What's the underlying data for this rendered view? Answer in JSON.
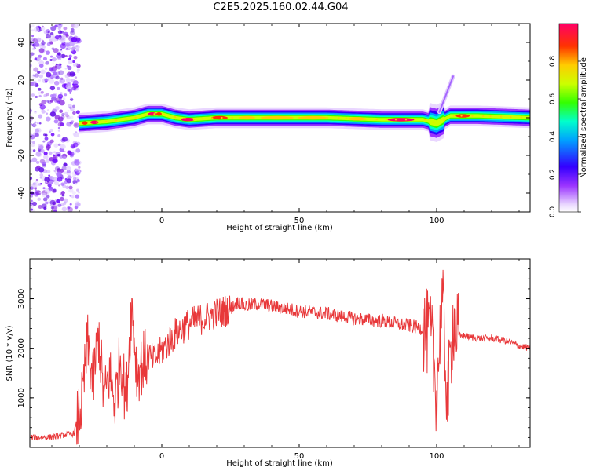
{
  "figure": {
    "title": "C2E5.2025.160.02.44.G04"
  },
  "chart_data": [
    {
      "type": "heatmap",
      "xlabel": "Height of straight line (km)",
      "ylabel": "Frequency (Hz)",
      "xlim": [
        -48,
        134
      ],
      "ylim": [
        -50,
        50
      ],
      "xticks": [
        0,
        50,
        100
      ],
      "yticks": [
        -40,
        -20,
        0,
        20,
        40
      ],
      "colorbar": {
        "label": "Normalized spectral amplitude",
        "range": [
          0.0,
          1.0
        ],
        "ticks": [
          "0.0",
          "0.2",
          "0.4",
          "0.6",
          "0.8"
        ],
        "colormap": [
          "#9a33ff",
          "#3300ff",
          "#00a0ff",
          "#00ffcc",
          "#33ff00",
          "#ccff00",
          "#ffcc00",
          "#ff3300",
          "#ff0066"
        ]
      },
      "noise_region_x": [
        -48,
        -30
      ],
      "band_centerline": [
        {
          "x": -30,
          "y": -3
        },
        {
          "x": -20,
          "y": -2
        },
        {
          "x": -10,
          "y": 0
        },
        {
          "x": -5,
          "y": 2
        },
        {
          "x": 0,
          "y": 2
        },
        {
          "x": 5,
          "y": 0
        },
        {
          "x": 10,
          "y": -1
        },
        {
          "x": 20,
          "y": 0
        },
        {
          "x": 40,
          "y": 0
        },
        {
          "x": 60,
          "y": 0
        },
        {
          "x": 80,
          "y": -1
        },
        {
          "x": 95,
          "y": -1
        },
        {
          "x": 100,
          "y": -3
        },
        {
          "x": 105,
          "y": 1
        },
        {
          "x": 115,
          "y": 1
        },
        {
          "x": 134,
          "y": 0
        }
      ],
      "streak": {
        "x": [
          101,
          106
        ],
        "y": [
          3,
          22
        ]
      }
    },
    {
      "type": "line",
      "xlabel": "Height of straight line (km)",
      "ylabel": "SNR (10 * v/v)",
      "xlim": [
        -48,
        134
      ],
      "ylim": [
        0,
        3800
      ],
      "xticks": [
        0,
        50,
        100
      ],
      "yticks": [
        1000,
        2000,
        3000
      ],
      "series": [
        {
          "color": "#e8383a",
          "x": [
            -48,
            -40,
            -32,
            -29,
            -27,
            -25,
            -23,
            -21,
            -19,
            -17,
            -15,
            -13,
            -11,
            -9,
            -7,
            -5,
            -3,
            0,
            5,
            10,
            15,
            20,
            25,
            28,
            30,
            35,
            40,
            50,
            60,
            70,
            80,
            90,
            95,
            98,
            100,
            102,
            104,
            106,
            108,
            110,
            115,
            120,
            125,
            130,
            134
          ],
          "values": [
            200,
            210,
            280,
            900,
            2100,
            1300,
            2300,
            950,
            1500,
            900,
            1900,
            900,
            2900,
            1500,
            1700,
            1850,
            1750,
            1950,
            2300,
            2500,
            2600,
            2700,
            2800,
            2950,
            2850,
            2900,
            2850,
            2750,
            2700,
            2600,
            2550,
            2450,
            2400,
            2200,
            1100,
            3000,
            900,
            2600,
            2250,
            2250,
            2200,
            2200,
            2150,
            2050,
            2000
          ]
        }
      ]
    }
  ]
}
